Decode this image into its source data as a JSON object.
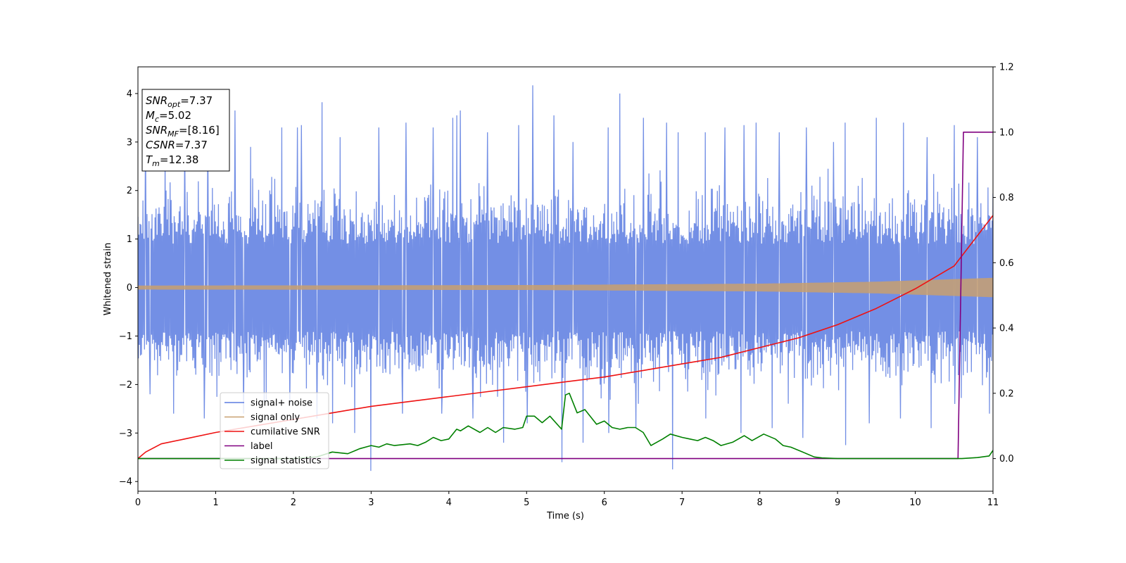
{
  "chart_data": {
    "type": "line",
    "xlabel": "Time (s)",
    "ylabel": "Whitened strain",
    "xlim": [
      0,
      11
    ],
    "ylim": [
      -4.2,
      4.55
    ],
    "y2lim": [
      -0.1,
      1.2
    ],
    "xticks": [
      "0",
      "1",
      "2",
      "3",
      "4",
      "5",
      "6",
      "7",
      "8",
      "9",
      "10",
      "11"
    ],
    "yticks": [
      "−4",
      "−3",
      "−2",
      "−1",
      "0",
      "1",
      "2",
      "3",
      "4"
    ],
    "y2ticks": [
      "0.0",
      "0.2",
      "0.4",
      "0.6",
      "0.8",
      "1.0",
      "1.2"
    ],
    "grid": false,
    "legend_position": "lower-left",
    "annotation": {
      "lines": [
        {
          "main": "SNR",
          "sub": "opt",
          "rest": "=7.37"
        },
        {
          "main": "M",
          "sub": "c",
          "rest": "=5.02"
        },
        {
          "main": "SNR",
          "sub": "MF",
          "rest": "=[8.16]"
        },
        {
          "main": "CSNR",
          "sub": "",
          "rest": "=7.37"
        },
        {
          "main": "T",
          "sub": "m",
          "rest": "=12.38"
        }
      ]
    },
    "series": [
      {
        "name": "signal+ noise",
        "color": "#5b7be0",
        "axis": "left",
        "kind": "noise",
        "envelope": {
          "upper_typical": 2.3,
          "lower_typical": -2.1
        },
        "spikes_up": [
          [
            0.1,
            3.3
          ],
          [
            0.35,
            2.9
          ],
          [
            0.6,
            3.1
          ],
          [
            0.9,
            3.2
          ],
          [
            1.25,
            3.65
          ],
          [
            1.45,
            2.9
          ],
          [
            1.85,
            3.3
          ],
          [
            2.05,
            3.3
          ],
          [
            2.1,
            3.35
          ],
          [
            2.37,
            3.82
          ],
          [
            2.6,
            3.1
          ],
          [
            3.1,
            3.3
          ],
          [
            3.45,
            3.4
          ],
          [
            3.8,
            3.3
          ],
          [
            4.05,
            3.5
          ],
          [
            4.1,
            3.55
          ],
          [
            4.15,
            3.65
          ],
          [
            4.5,
            3.2
          ],
          [
            4.9,
            3.35
          ],
          [
            5.08,
            4.17
          ],
          [
            5.35,
            3.55
          ],
          [
            5.6,
            3.0
          ],
          [
            6.05,
            3.3
          ],
          [
            6.2,
            4.0
          ],
          [
            6.5,
            3.5
          ],
          [
            6.8,
            3.4
          ],
          [
            6.95,
            3.2
          ],
          [
            7.3,
            3.2
          ],
          [
            7.55,
            3.3
          ],
          [
            7.8,
            3.35
          ],
          [
            7.95,
            3.4
          ],
          [
            8.25,
            3.2
          ],
          [
            8.6,
            3.3
          ],
          [
            8.95,
            3.0
          ],
          [
            9.1,
            3.4
          ],
          [
            9.5,
            3.5
          ],
          [
            9.85,
            3.4
          ],
          [
            10.15,
            3.1
          ],
          [
            10.5,
            3.35
          ],
          [
            10.8,
            3.1
          ]
        ],
        "spikes_down": [
          [
            0.15,
            -2.2
          ],
          [
            0.45,
            -2.6
          ],
          [
            0.85,
            -2.7
          ],
          [
            1.35,
            -2.6
          ],
          [
            1.95,
            -2.4
          ],
          [
            2.3,
            -2.7
          ],
          [
            2.5,
            -2.8
          ],
          [
            2.78,
            -3.0
          ],
          [
            2.99,
            -3.78
          ],
          [
            3.4,
            -2.6
          ],
          [
            3.9,
            -2.6
          ],
          [
            4.3,
            -2.7
          ],
          [
            4.7,
            -3.2
          ],
          [
            5.0,
            -2.8
          ],
          [
            5.45,
            -3.6
          ],
          [
            5.72,
            -3.2
          ],
          [
            6.05,
            -3.0
          ],
          [
            6.4,
            -2.9
          ],
          [
            6.87,
            -3.75
          ],
          [
            7.3,
            -2.7
          ],
          [
            7.75,
            -3.0
          ],
          [
            8.15,
            -2.9
          ],
          [
            8.55,
            -3.1
          ],
          [
            9.1,
            -3.25
          ],
          [
            9.4,
            -2.8
          ],
          [
            9.8,
            -2.7
          ],
          [
            10.2,
            -2.9
          ],
          [
            10.5,
            -2.4
          ],
          [
            10.95,
            -2.6
          ]
        ]
      },
      {
        "name": "signal only",
        "color": "#c8a070",
        "axis": "left",
        "kind": "chirp",
        "amplitude": [
          [
            0,
            0.04
          ],
          [
            5,
            0.05
          ],
          [
            8,
            0.08
          ],
          [
            9.5,
            0.12
          ],
          [
            11,
            0.2
          ]
        ]
      },
      {
        "name": "cumilative SNR",
        "color": "#ee1111",
        "axis": "right",
        "x": [
          0,
          0.1,
          0.3,
          0.6,
          1,
          1.5,
          2,
          2.5,
          3,
          3.5,
          4,
          4.5,
          5,
          5.5,
          6,
          6.5,
          7,
          7.5,
          8,
          8.5,
          9,
          9.5,
          10,
          10.5,
          11
        ],
        "y": [
          0.0,
          0.02,
          0.045,
          0.06,
          0.08,
          0.1,
          0.12,
          0.14,
          0.16,
          0.175,
          0.19,
          0.205,
          0.22,
          0.235,
          0.25,
          0.27,
          0.29,
          0.31,
          0.34,
          0.37,
          0.41,
          0.46,
          0.52,
          0.59,
          0.745
        ]
      },
      {
        "name": "label",
        "color": "#800080",
        "axis": "right",
        "x": [
          0,
          10.55,
          10.62,
          11
        ],
        "y": [
          0,
          0,
          1,
          1
        ]
      },
      {
        "name": "signal statistics",
        "color": "#008000",
        "axis": "right",
        "x": [
          0,
          0.5,
          1,
          1.5,
          2,
          2.3,
          2.5,
          2.7,
          2.85,
          3.0,
          3.1,
          3.2,
          3.3,
          3.5,
          3.6,
          3.7,
          3.8,
          3.9,
          4.0,
          4.1,
          4.15,
          4.25,
          4.4,
          4.5,
          4.6,
          4.7,
          4.85,
          4.95,
          5.0,
          5.1,
          5.2,
          5.3,
          5.45,
          5.5,
          5.55,
          5.65,
          5.75,
          5.9,
          6.0,
          6.1,
          6.2,
          6.3,
          6.4,
          6.5,
          6.6,
          6.75,
          6.85,
          7.0,
          7.1,
          7.2,
          7.3,
          7.4,
          7.5,
          7.65,
          7.8,
          7.9,
          8.05,
          8.2,
          8.3,
          8.4,
          8.55,
          8.7,
          8.8,
          9.0,
          9.2,
          9.5,
          9.8,
          10.0,
          10.3,
          10.6,
          10.8,
          10.95,
          11.0
        ],
        "y": [
          0.0,
          0.0,
          0.0,
          0.0,
          0.0,
          0.005,
          0.02,
          0.015,
          0.03,
          0.04,
          0.035,
          0.045,
          0.04,
          0.045,
          0.04,
          0.05,
          0.065,
          0.055,
          0.06,
          0.09,
          0.085,
          0.1,
          0.08,
          0.095,
          0.08,
          0.095,
          0.09,
          0.095,
          0.13,
          0.13,
          0.11,
          0.13,
          0.09,
          0.195,
          0.2,
          0.14,
          0.15,
          0.105,
          0.115,
          0.095,
          0.09,
          0.095,
          0.095,
          0.08,
          0.04,
          0.06,
          0.075,
          0.065,
          0.06,
          0.055,
          0.065,
          0.055,
          0.04,
          0.05,
          0.07,
          0.055,
          0.075,
          0.06,
          0.04,
          0.035,
          0.02,
          0.005,
          0.002,
          0.0,
          0.0,
          0.0,
          0.0,
          0.0,
          0.0,
          0.0,
          0.003,
          0.008,
          0.025
        ]
      }
    ]
  }
}
